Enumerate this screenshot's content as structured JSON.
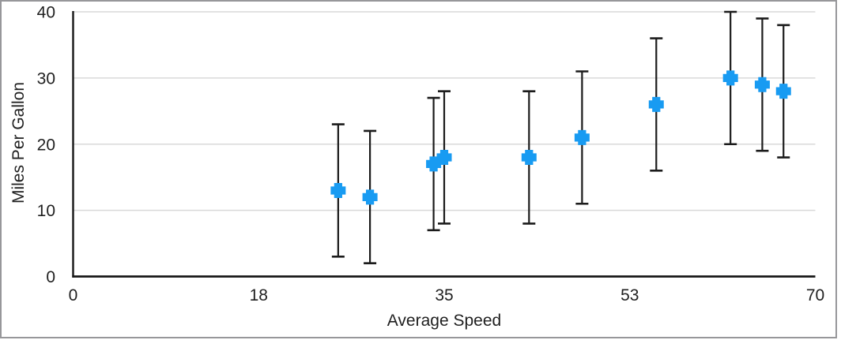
{
  "chart_data": {
    "type": "scatter",
    "title": "",
    "xlabel": "Average Speed",
    "ylabel": "Miles Per Gallon",
    "x": [
      25,
      28,
      34,
      35,
      43,
      48,
      55,
      62,
      65,
      67
    ],
    "y": [
      13,
      12,
      17,
      18,
      18,
      21,
      26,
      30,
      29,
      28
    ],
    "error_bars": {
      "direction": "vertical",
      "plus": 10,
      "minus": 10
    },
    "xlim": [
      0,
      70
    ],
    "ylim": [
      0,
      40
    ],
    "x_tick_labels": [
      "0",
      "18",
      "35",
      "53",
      "70"
    ],
    "y_tick_values": [
      0,
      10,
      20,
      30,
      40
    ],
    "y_tick_labels": [
      "0",
      "10",
      "20",
      "30",
      "40"
    ],
    "grid": "horizontal",
    "legend": "none",
    "marker": {
      "shape": "plus",
      "size": 19
    },
    "colors": {
      "marker": "#189bf2",
      "error_bar": "#1b1b1b",
      "axis": "#161616",
      "gridline": "#d9d9d9",
      "tick_text": "#1f1f1f",
      "frame_border": "#97979a"
    }
  }
}
